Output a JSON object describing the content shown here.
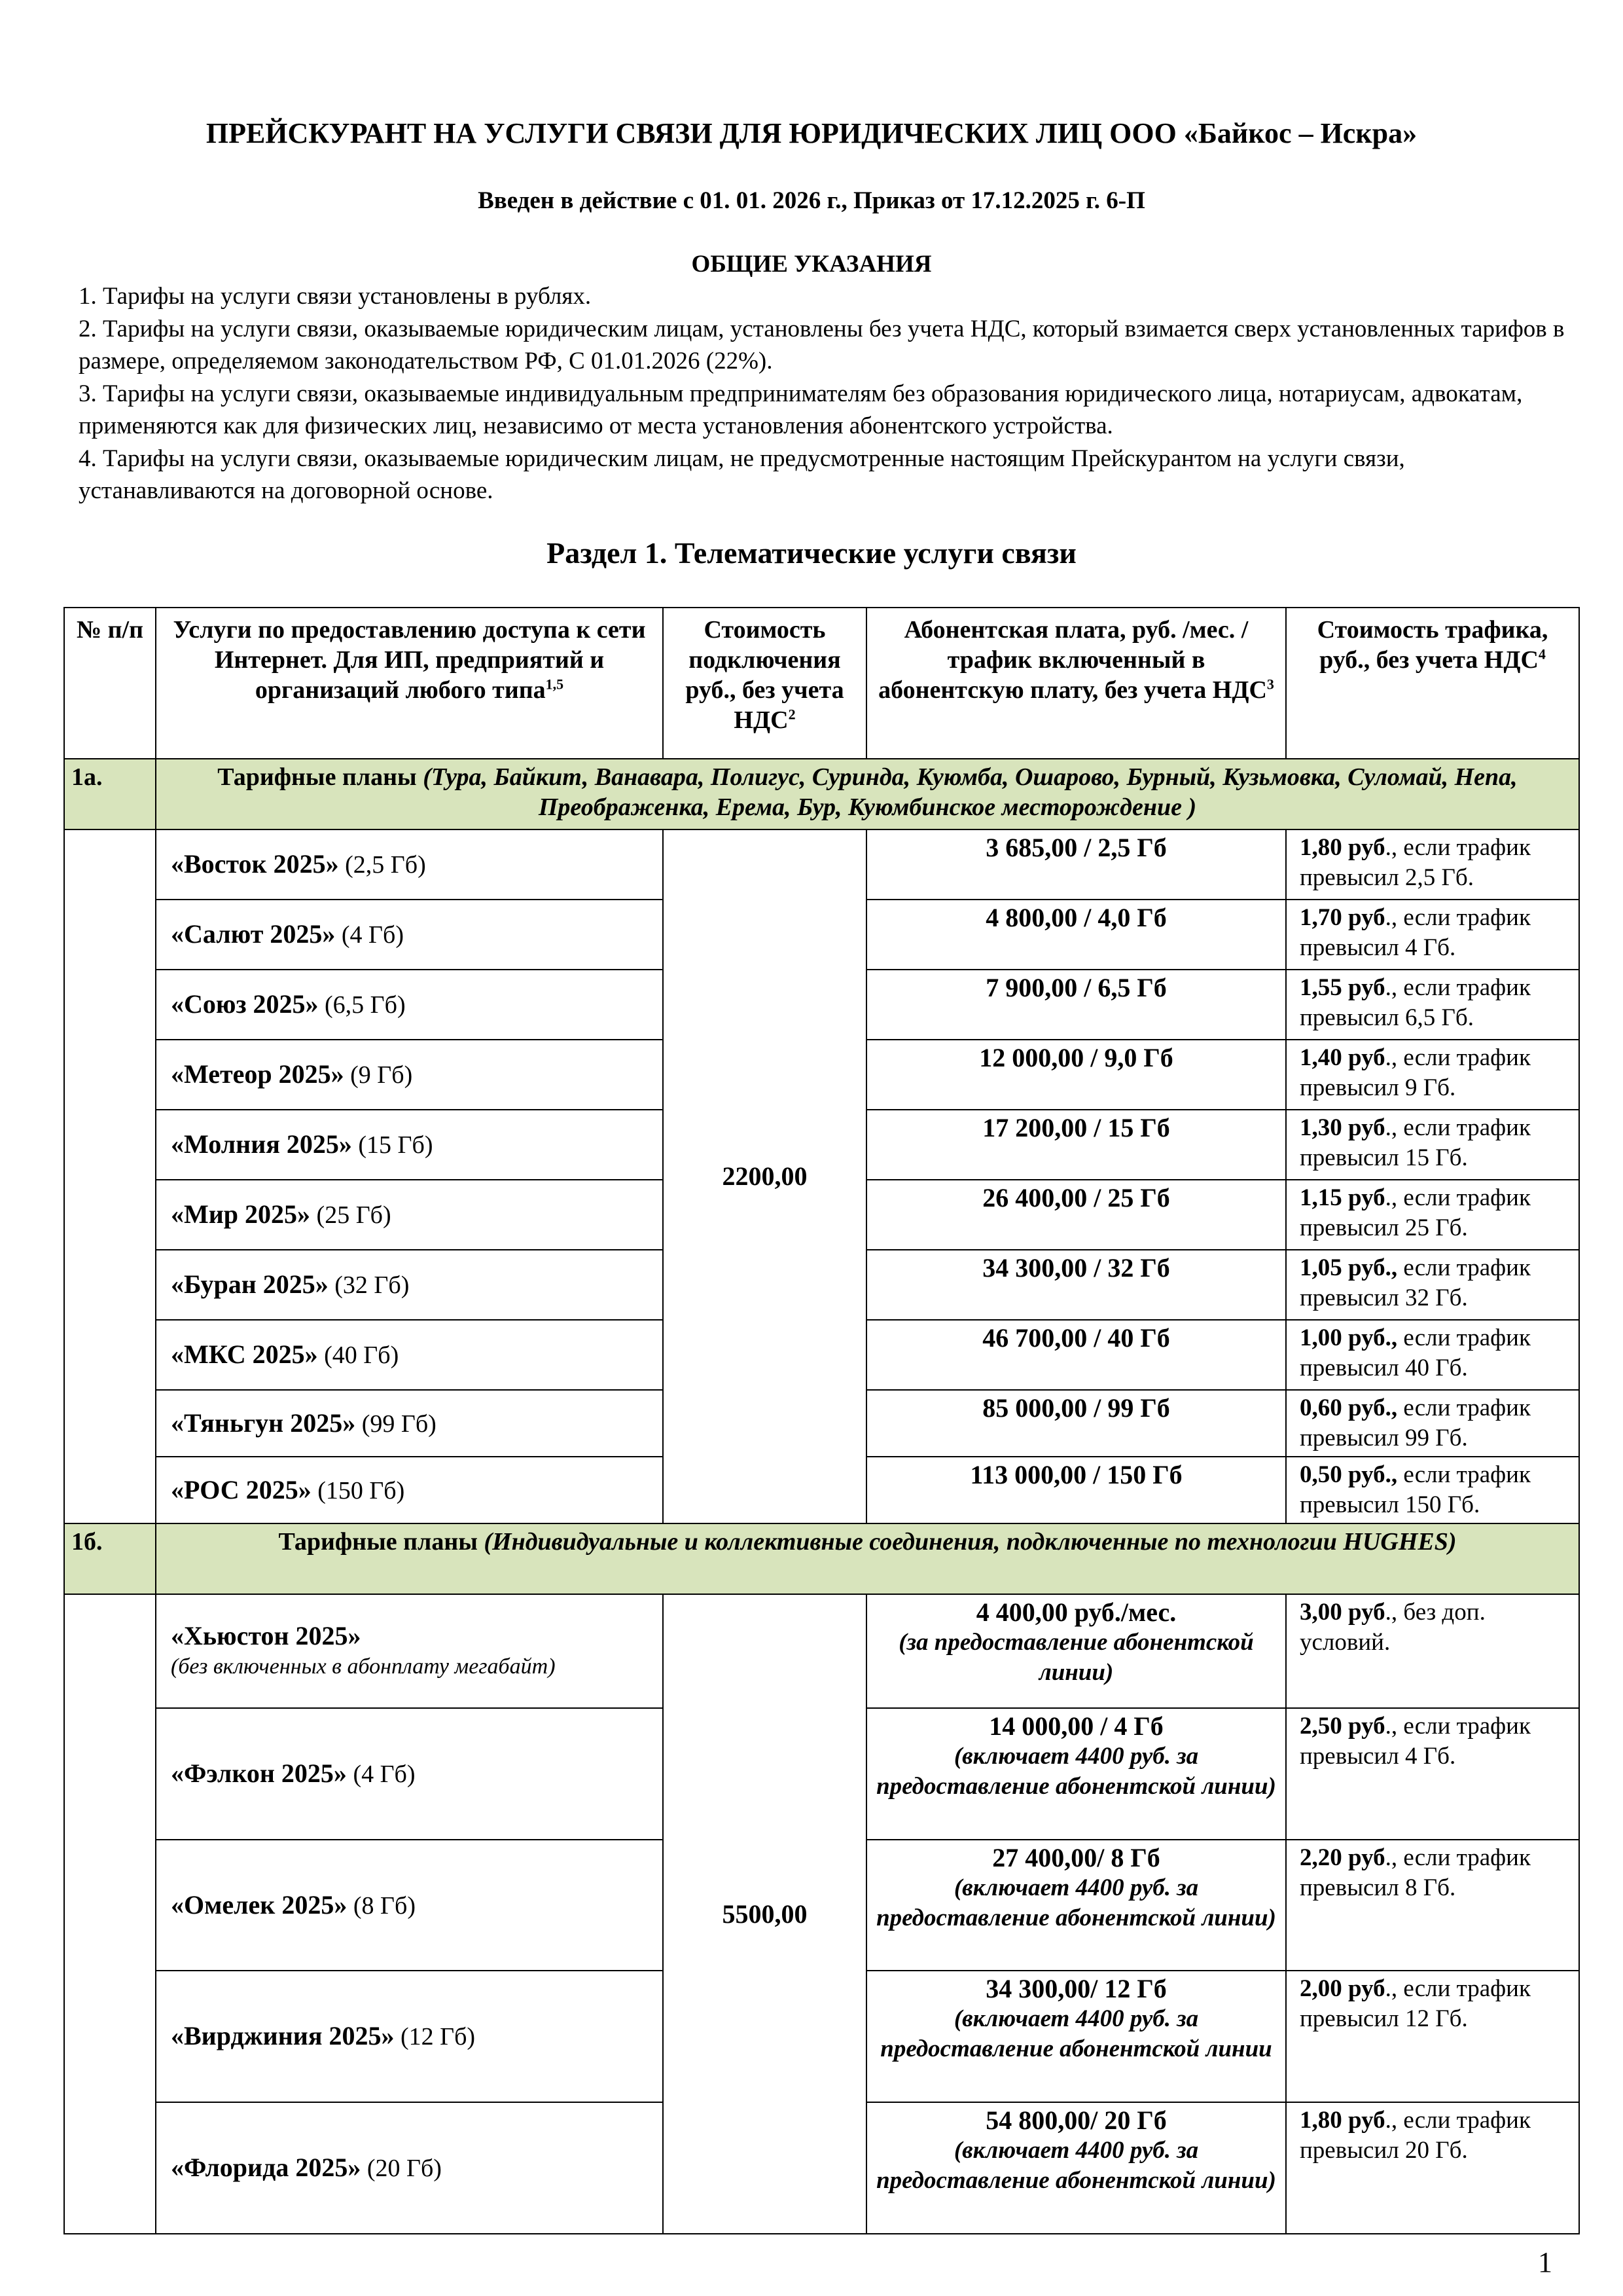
{
  "title": "ПРЕЙСКУРАНТ НА УСЛУГИ СВЯЗИ ДЛЯ ЮРИДИЧЕСКИХ ЛИЦ ООО «Байкос – Искра»",
  "subtitle": "Введен в действие с 01. 01. 2026 г., Приказ от 17.12.2025 г. 6-П",
  "general": {
    "heading": "ОБЩИЕ УКАЗАНИЯ",
    "items": [
      "1. Тарифы на услуги связи  установлены в рублях.",
      "2. Тарифы на услуги связи, оказываемые юридическим  лицам, установлены без учета НДС, который взимается сверх установленных тарифов в размере, определяемом законодательством РФ, С 01.01.2026 (22%).",
      "3. Тарифы на услуги связи, оказываемые индивидуальным предпринимателям без образования юридического лица, нотариусам, адвокатам, применяются как для физических лиц, независимо от места установления абонентского устройства.",
      "4. Тарифы на услуги связи, оказываемые юридическим лицам, не предусмотренные настоящим Прейскурантом на услуги связи, устанавливаются на договорной основе."
    ]
  },
  "section_title": "Раздел 1. Телематические услуги связи",
  "table": {
    "headers": [
      {
        "text": "№ п/п",
        "sup": ""
      },
      {
        "text": "Услуги по предоставлению доступа к сети Интернет. Для ИП, предприятий и организаций любого типа",
        "sup": "1,5"
      },
      {
        "text": "Стоимость подключения руб., без учета НДС",
        "sup": "2"
      },
      {
        "text": "Абонентская плата, руб. /мес. /трафик включенный в абонентскую плату, без учета НДС",
        "sup": "3"
      },
      {
        "text": "Стоимость трафика, руб., без учета НДС",
        "sup": "4"
      }
    ],
    "groups": [
      {
        "num": "1а.",
        "label": "Тарифные планы ",
        "label_italic": "(Тура, Байкит, Ванавара, Полигус, Суринда, Куюмба, Ошарово, Бурный, Кузьмовка, Суломай, Непа, Преображенка, Ерема, Бур, Куюмбинское месторождение )",
        "connection": "2200,00",
        "rows": [
          {
            "name": "«Восток 2025»",
            "size": " (2,5 Гб)",
            "price": "3 685,00 / 2,5  Гб",
            "fee_bold": "1,80 руб",
            "fee_rest": "., если трафик превысил 2,5 Гб."
          },
          {
            "name": "«Салют 2025»",
            "size": " (4 Гб)",
            "price": "4 800,00 / 4,0 Гб",
            "fee_bold": "1,70 руб",
            "fee_rest": "., если трафик превысил 4 Гб."
          },
          {
            "name": "«Союз 2025»",
            "size": " (6,5 Гб)",
            "price": "7 900,00 / 6,5 Гб",
            "fee_bold": "1,55 руб",
            "fee_rest": "., если трафик превысил 6,5 Гб."
          },
          {
            "name": "«Метеор 2025»",
            "size": " (9 Гб)",
            "price": "12 000,00 / 9,0  Гб",
            "fee_bold": "1,40 руб",
            "fee_rest": "., если трафик превысил 9 Гб."
          },
          {
            "name": "«Молния 2025»",
            "size": " (15 Гб)",
            "price": "17 200,00 / 15  Гб",
            "fee_bold": "1,30 руб",
            "fee_rest": "., если трафик превысил 15 Гб."
          },
          {
            "name": "«Мир 2025»",
            "size": " (25 Гб)",
            "price": "26 400,00 / 25  Гб",
            "fee_bold": "1,15 руб",
            "fee_rest": "., если трафик превысил 25 Гб."
          },
          {
            "name": "«Буран 2025»",
            "size": " (32 Гб)",
            "price": "34 300,00 / 32  Гб",
            "fee_bold": "1,05 руб.,",
            "fee_rest": " если трафик превысил 32 Гб."
          },
          {
            "name": "«МКС 2025»",
            "size": " (40 Гб)",
            "price": "46 700,00 / 40  Гб",
            "fee_bold": "1,00 руб.,",
            "fee_rest": " если трафик превысил 40 Гб."
          },
          {
            "name": "«Тяньгун 2025»",
            "size": " (99 Гб)",
            "price": "85 000,00 / 99  Гб",
            "fee_bold": "0,60 руб.,",
            "fee_rest": " если трафик превысил 99 Гб."
          },
          {
            "name": "«РОС 2025»",
            "size": " (150 Гб)",
            "price": "113 000,00 / 150 Гб",
            "fee_bold": "0,50 руб.,",
            "fee_rest": " если трафик превысил 150 Гб."
          }
        ]
      },
      {
        "num": "1б.",
        "label": "Тарифные планы ",
        "label_italic": "(Индивидуальные и коллективные соединения, подключенные по технологии HUGHES)",
        "connection": "5500,00",
        "rows": [
          {
            "name": "«Хьюстон 2025»",
            "size": "",
            "name_note": "(без включенных в абонплату мегабайт)",
            "price": "4 400,00 руб./мес.",
            "price_note": "(за предоставление абонентской линии)",
            "fee_bold": "3,00 руб",
            "fee_rest": "., без доп. условий."
          },
          {
            "name": "«Фэлкон 2025»",
            "size": " (4 Гб)",
            "price": "14 000,00 / 4 Гб",
            "price_note": "(включает 4400 руб. за предоставление абонентской линии)",
            "fee_bold": "2,50 руб",
            "fee_rest": "., если трафик превысил 4 Гб."
          },
          {
            "name": "«Омелек 2025»",
            "size": " (8 Гб)",
            "price": "27 400,00/ 8 Гб",
            "price_note": "(включает 4400 руб. за предоставление абонентской линии)",
            "fee_bold": "2,20 руб",
            "fee_rest": "., если трафик превысил 8 Гб."
          },
          {
            "name": "«Вирджиния 2025»",
            "size": "  (12 Гб)",
            "price": "34 300,00/ 12 Гб",
            "price_note": "(включает 4400 руб. за предоставление абонентской линии",
            "fee_bold": "2,00 руб",
            "fee_rest": "., если трафик превысил 12 Гб."
          },
          {
            "name": "«Флорида 2025»",
            "size": "  (20 Гб)",
            "price": "54 800,00/ 20 Гб",
            "price_note": "(включает 4400 руб. за предоставление абонентской линии)",
            "fee_bold": "1,80 руб",
            "fee_rest": "., если трафик превысил 20 Гб."
          }
        ]
      }
    ]
  },
  "page_number": "1",
  "colors": {
    "group_row_bg": "#d8e4bc"
  }
}
